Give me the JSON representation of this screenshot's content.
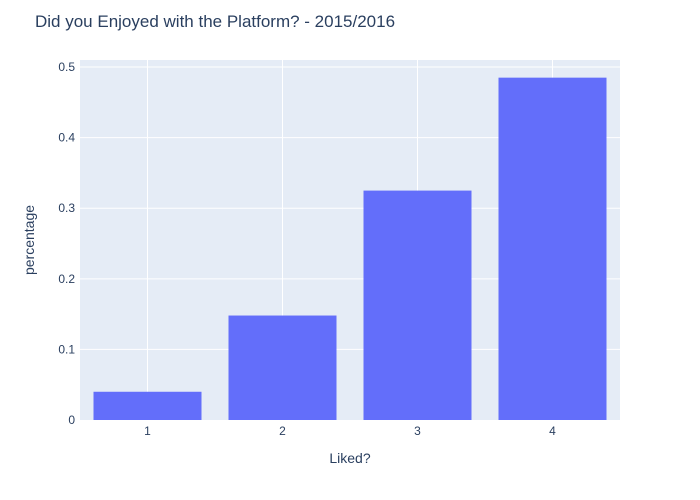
{
  "chart_data": {
    "type": "bar",
    "title": "Did you Enjoyed with the Platform?  - 2015/2016",
    "xlabel": "Liked?",
    "ylabel": "percentage",
    "categories": [
      "1",
      "2",
      "3",
      "4"
    ],
    "values": [
      0.04,
      0.148,
      0.325,
      0.485
    ],
    "ylim": [
      0,
      0.51
    ],
    "yticks": [
      0,
      0.1,
      0.2,
      0.3,
      0.4,
      0.5
    ],
    "ytick_labels": [
      "0",
      "0.1",
      "0.2",
      "0.3",
      "0.4",
      "0.5"
    ],
    "grid": true,
    "legend": "none",
    "colors": {
      "bar": "#636efa",
      "plot_background": "#e5ecf6",
      "grid": "#ffffff",
      "text": "#2a3f5f"
    }
  }
}
